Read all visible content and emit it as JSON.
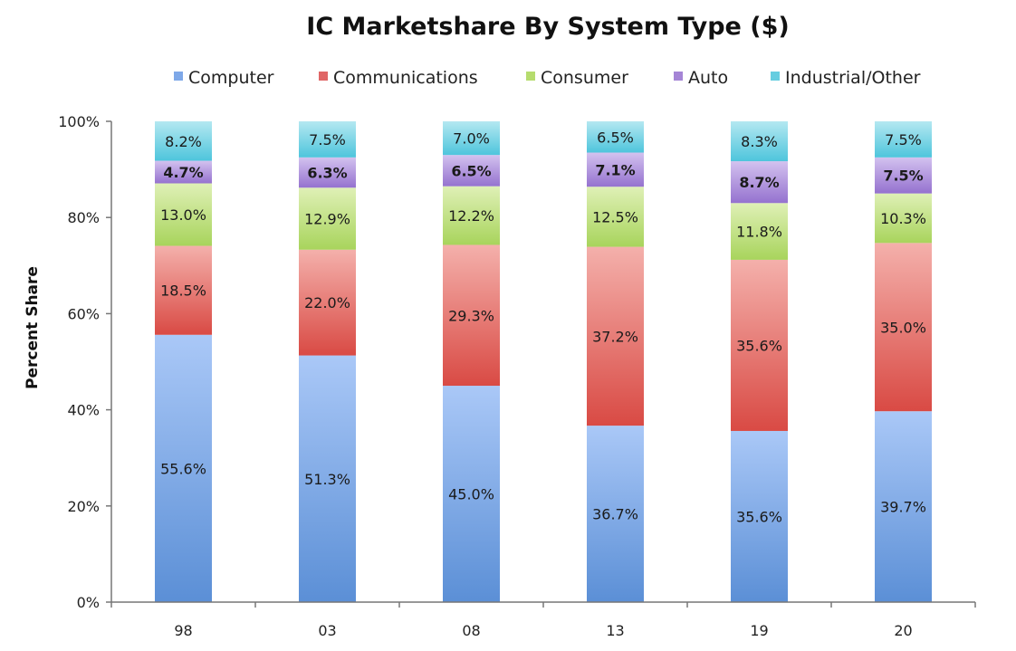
{
  "chart_data": {
    "type": "bar",
    "stacked": true,
    "title": "IC Marketshare By System Type ($)",
    "xlabel": "",
    "ylabel": "Percent Share",
    "ylim": [
      0,
      100
    ],
    "y_ticks": [
      "0%",
      "20%",
      "40%",
      "60%",
      "80%",
      "100%"
    ],
    "legend_position": "top",
    "categories": [
      "98",
      "03",
      "08",
      "13",
      "19",
      "20"
    ],
    "series": [
      {
        "name": "Computer",
        "values": [
          55.6,
          51.3,
          45.0,
          36.7,
          35.6,
          39.7
        ],
        "labels": [
          "55.6%",
          "51.3%",
          "45.0%",
          "36.7%",
          "35.6%",
          "39.7%"
        ],
        "color": "#7ea8e8",
        "color_top": "#aac8f7",
        "color_bottom": "#5b8fd6",
        "bold": false
      },
      {
        "name": "Communications",
        "values": [
          18.5,
          22.0,
          29.3,
          37.2,
          35.6,
          35.0
        ],
        "labels": [
          "18.5%",
          "22.0%",
          "29.3%",
          "37.2%",
          "35.6%",
          "35.0%"
        ],
        "color": "#e06666",
        "color_top": "#f4b0ab",
        "color_bottom": "#d94a44",
        "bold": false
      },
      {
        "name": "Consumer",
        "values": [
          13.0,
          12.9,
          12.2,
          12.5,
          11.8,
          10.3
        ],
        "labels": [
          "13.0%",
          "12.9%",
          "12.2%",
          "12.5%",
          "11.8%",
          "10.3%"
        ],
        "color": "#b6dc6e",
        "color_top": "#dff0b6",
        "color_bottom": "#a8d45c",
        "bold": false
      },
      {
        "name": "Auto",
        "values": [
          4.7,
          6.3,
          6.5,
          7.1,
          8.7,
          7.5
        ],
        "labels": [
          "4.7%",
          "6.3%",
          "6.5%",
          "7.1%",
          "8.7%",
          "7.5%"
        ],
        "color": "#a585d6",
        "color_top": "#d3c2ef",
        "color_bottom": "#9572cf",
        "bold": true
      },
      {
        "name": "Industrial/Other",
        "values": [
          8.2,
          7.5,
          7.0,
          6.5,
          8.3,
          7.5
        ],
        "labels": [
          "8.2%",
          "7.5%",
          "7.0%",
          "6.5%",
          "8.3%",
          "7.5%"
        ],
        "color": "#66cde0",
        "color_top": "#b4e8f1",
        "color_bottom": "#4ec5dc",
        "bold": false
      }
    ]
  }
}
